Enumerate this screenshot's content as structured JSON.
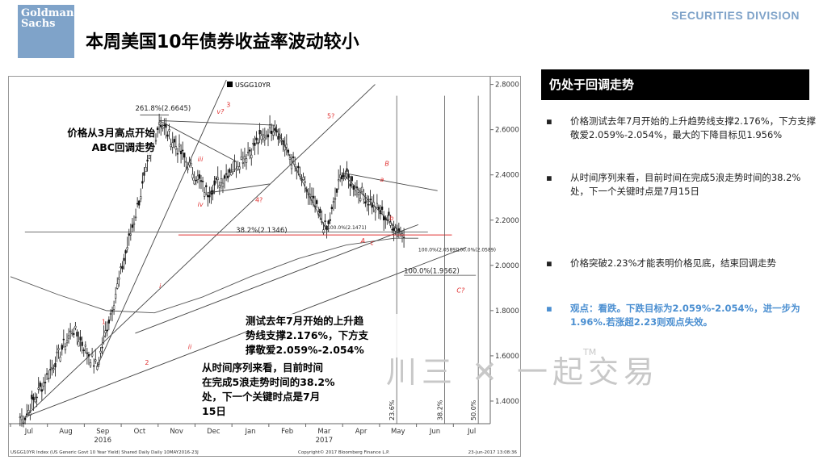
{
  "header": {
    "logo_line1": "Goldman",
    "logo_line2": "Sachs",
    "division": "SECURITIES DIVISION",
    "title": "本周美国10年债券收益率波动较小"
  },
  "right_panel": {
    "heading": "仍处于回调走势",
    "bullets": [
      {
        "dot": "▪",
        "text": "价格测试去年7月开始的上升趋势线支撑2.176%，下方支撑敬爱2.059%-2.054%，最大的下降目标见1.956%"
      },
      {
        "dot": "▪",
        "text": "从时间序列来看，目前时间在完成5浪走势时间的38.2%处，下一个关键时点是7月15日"
      },
      {
        "dot": "▪",
        "text": "价格突破2.23%才能表明价格见底，结束回调走势"
      },
      {
        "dot": "▪",
        "text": "观点：看跌。下跌目标为2.059%-2.054%，进一步为1.96%.若涨超2.23则观点失效。"
      }
    ]
  },
  "watermark": {
    "text": "川三 ✕ 一起交易",
    "tm": "TM"
  },
  "annotations": {
    "abc": [
      "价格从3月高点开始",
      "ABC回调走势"
    ],
    "trend": [
      "测试去年7月开始的上升趋",
      "势线支撑2.176%，下方支",
      "撑敬爱2.059%-2.054%"
    ],
    "time": [
      "从时间序列来看，目前时间",
      "在完成5浪走势时间的38.2%",
      "处，下一个关键时点是7月",
      "15日"
    ]
  },
  "chart_data": {
    "type": "candlestick",
    "legend": "USGG10YR",
    "y_ticks": [
      "2.8000",
      "2.6000",
      "2.4000",
      "2.2000",
      "2.0000",
      "1.8000",
      "1.6000",
      "1.4000"
    ],
    "ylim": [
      1.3,
      2.82
    ],
    "months": [
      "Jul",
      "Aug",
      "Sep",
      "Oct",
      "Nov",
      "Dec",
      "Jan",
      "Feb",
      "Mar",
      "Apr",
      "May",
      "Jun",
      "Jul"
    ],
    "years": [
      "2016",
      "2017"
    ],
    "fib_labels": [
      "261.8%(2.6645)",
      "38.2%(2.1346)",
      "100.0%(2.1471)",
      "100.0%(2.0589)",
      "100.0%(2.0589)",
      "100.0%(1.9562)"
    ],
    "wave_labels": [
      "1",
      "2",
      "3",
      "4?",
      "5?",
      "i",
      "ii",
      "iii",
      "iv",
      "v?",
      "A",
      "B",
      "C?",
      "a",
      "b",
      "c"
    ],
    "time_labels": [
      "23.6%",
      "38.2%",
      "50.0%"
    ],
    "footer_left": "USGG10YR Index (US Generic Govt 10 Year Yield) Shared Daily   Daily 10MAY2016-23J",
    "footer_mid": "Copyright© 2017 Bloomberg Finance L.P.",
    "footer_right": "23-Jun-2017 13:08:36",
    "key_points": [
      {
        "label": "Jul 2016 low",
        "x": 0.03,
        "y": 1.33
      },
      {
        "label": "wave 1",
        "x": 0.13,
        "y": 1.72
      },
      {
        "label": "wave 2",
        "x": 0.18,
        "y": 1.55
      },
      {
        "label": "wave 3 high",
        "x": 0.31,
        "y": 2.64
      },
      {
        "label": "wave 4",
        "x": 0.41,
        "y": 2.32
      },
      {
        "label": "wave 5 high",
        "x": 0.55,
        "y": 2.62
      },
      {
        "label": "A",
        "x": 0.66,
        "y": 2.15
      },
      {
        "label": "B",
        "x": 0.69,
        "y": 2.41
      },
      {
        "label": "current",
        "x": 0.81,
        "y": 2.15
      }
    ]
  },
  "colors": {
    "accent": "#7fa3c9",
    "highlight": "#4b8fd1",
    "wave": "#e03030"
  }
}
